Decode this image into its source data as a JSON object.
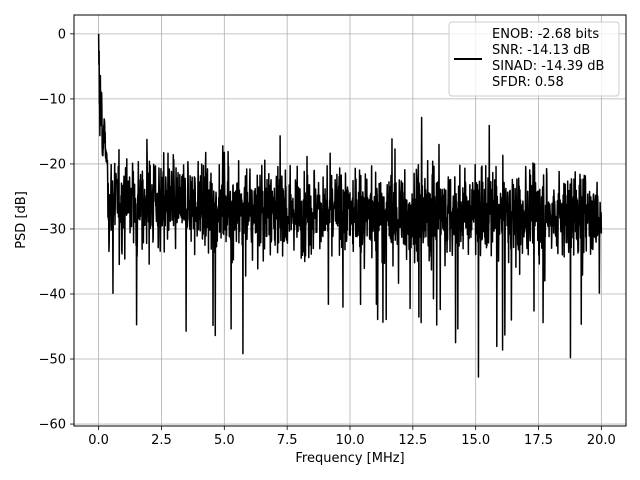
{
  "chart_data": {
    "type": "line",
    "xlabel": "Frequency [MHz]",
    "ylabel": "PSD [dB]",
    "xlim": [
      -0.98,
      20.98
    ],
    "ylim": [
      -60.3,
      2.9
    ],
    "xticks": [
      0.0,
      2.5,
      5.0,
      7.5,
      10.0,
      12.5,
      15.0,
      17.5,
      20.0
    ],
    "xtick_labels": [
      "0.0",
      "2.5",
      "5.0",
      "7.5",
      "10.0",
      "12.5",
      "15.0",
      "17.5",
      "20.0"
    ],
    "yticks": [
      0,
      -10,
      -20,
      -30,
      -40,
      -50,
      -60
    ],
    "ytick_labels": [
      "0",
      "−10",
      "−20",
      "−30",
      "−40",
      "−50",
      "−60"
    ],
    "grid": true,
    "legend_position": "top-right",
    "series": [
      {
        "color": "#000000",
        "x_range": [
          0.0,
          20.0
        ],
        "peak_value": 0.0,
        "noise_median_db": -27,
        "noise_spread_db": 12,
        "approx_points": 2000
      }
    ],
    "legend_lines": [
      "ENOB: -2.68 bits",
      "SNR: -14.13 dB",
      "SINAD: -14.39 dB",
      "SFDR: 0.58"
    ]
  }
}
